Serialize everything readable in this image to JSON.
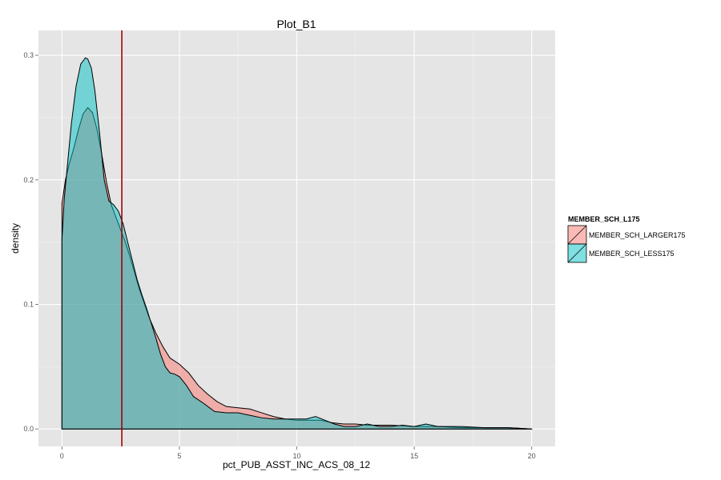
{
  "chart_data": {
    "type": "area",
    "subtype": "density",
    "title": "Plot_B1",
    "xlabel": "pct_PUB_ASST_INC_ACS_08_12",
    "ylabel": "density",
    "xlim": [
      -1.0,
      21.0
    ],
    "ylim": [
      -0.014,
      0.32
    ],
    "x_ticks": [
      0,
      5,
      10,
      15,
      20
    ],
    "y_ticks": [
      0.0,
      0.1,
      0.2,
      0.3
    ],
    "y_tick_labels": [
      "0.0",
      "0.1",
      "0.2",
      "0.3"
    ],
    "grid": true,
    "legend": {
      "title": "MEMBER_SCH_L175",
      "position": "right"
    },
    "vline": {
      "x": 2.55,
      "color": "#a50000"
    },
    "series": [
      {
        "name": "MEMBER_SCH_LARGER175",
        "color": "#f8766d",
        "x": [
          0,
          0.15,
          0.3,
          0.5,
          0.7,
          0.9,
          1.1,
          1.3,
          1.5,
          1.7,
          1.9,
          2.1,
          2.3,
          2.5,
          2.7,
          2.9,
          3.1,
          3.3,
          3.5,
          3.7,
          4.0,
          4.3,
          4.6,
          5.0,
          5.4,
          5.8,
          6.2,
          6.6,
          7.0,
          7.5,
          8.0,
          8.5,
          9.0,
          9.5,
          10.0,
          10.5,
          11.0,
          11.5,
          12.0,
          12.5,
          13.0,
          14.0,
          15.0,
          16.0,
          17.0,
          18.0,
          19.0,
          20.0
        ],
        "values": [
          0.181,
          0.2,
          0.212,
          0.225,
          0.24,
          0.253,
          0.258,
          0.254,
          0.24,
          0.22,
          0.198,
          0.18,
          0.17,
          0.16,
          0.15,
          0.138,
          0.125,
          0.112,
          0.101,
          0.09,
          0.077,
          0.066,
          0.057,
          0.052,
          0.045,
          0.035,
          0.028,
          0.022,
          0.018,
          0.017,
          0.016,
          0.013,
          0.01,
          0.008,
          0.007,
          0.007,
          0.007,
          0.005,
          0.004,
          0.004,
          0.003,
          0.003,
          0.002,
          0.002,
          0.001,
          0.001,
          0.001,
          0.0
        ]
      },
      {
        "name": "MEMBER_SCH_LESS175",
        "color": "#00bfc4",
        "x": [
          0,
          0.1,
          0.25,
          0.4,
          0.6,
          0.8,
          1.0,
          1.1,
          1.25,
          1.4,
          1.6,
          1.8,
          2.0,
          2.2,
          2.4,
          2.6,
          2.8,
          3.0,
          3.2,
          3.4,
          3.6,
          3.8,
          4.0,
          4.2,
          4.4,
          4.6,
          4.8,
          5.0,
          5.3,
          5.6,
          6.0,
          6.5,
          7.0,
          7.5,
          8.0,
          8.5,
          9.0,
          9.5,
          10.0,
          10.4,
          10.8,
          11.2,
          11.6,
          12.0,
          12.5,
          13.0,
          13.5,
          14.0,
          14.5,
          15.0,
          15.5,
          16.0,
          17.0,
          18.0,
          19.0,
          20.0
        ],
        "values": [
          0.152,
          0.185,
          0.215,
          0.245,
          0.275,
          0.293,
          0.298,
          0.297,
          0.29,
          0.272,
          0.238,
          0.2,
          0.183,
          0.18,
          0.175,
          0.165,
          0.15,
          0.135,
          0.12,
          0.108,
          0.097,
          0.085,
          0.073,
          0.06,
          0.05,
          0.045,
          0.044,
          0.042,
          0.035,
          0.026,
          0.021,
          0.014,
          0.013,
          0.013,
          0.011,
          0.009,
          0.008,
          0.008,
          0.008,
          0.008,
          0.01,
          0.007,
          0.004,
          0.002,
          0.002,
          0.004,
          0.002,
          0.002,
          0.003,
          0.002,
          0.004,
          0.002,
          0.002,
          0.001,
          0.001,
          0.0
        ]
      }
    ]
  }
}
